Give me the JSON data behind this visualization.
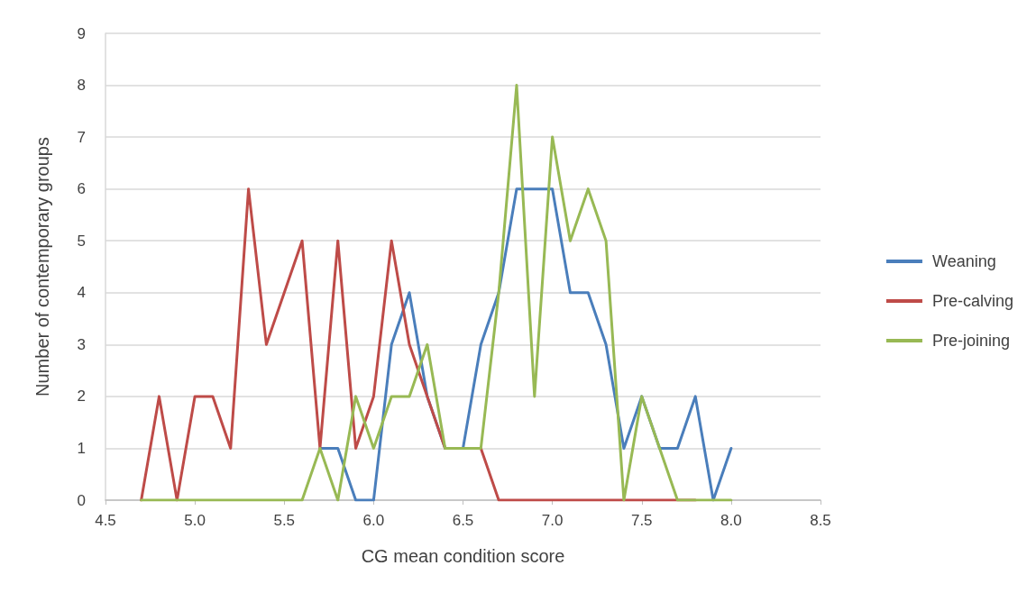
{
  "chart_data": {
    "type": "line",
    "xlabel": "CG mean condition score",
    "ylabel": "Number of contemporary groups",
    "x": [
      4.7,
      4.8,
      4.9,
      5.0,
      5.1,
      5.2,
      5.3,
      5.4,
      5.5,
      5.6,
      5.7,
      5.8,
      5.9,
      6.0,
      6.1,
      6.2,
      6.3,
      6.4,
      6.5,
      6.6,
      6.7,
      6.8,
      6.9,
      7.0,
      7.1,
      7.2,
      7.3,
      7.4,
      7.5,
      7.6,
      7.7,
      7.8,
      7.9,
      8.0
    ],
    "series": [
      {
        "name": "Weaning",
        "color": "#4a7ebb",
        "values": [
          null,
          null,
          null,
          null,
          null,
          null,
          null,
          null,
          null,
          null,
          1,
          1,
          0,
          0,
          3,
          4,
          2,
          1,
          1,
          3,
          4,
          6,
          6,
          6,
          4,
          4,
          3,
          1,
          2,
          1,
          1,
          2,
          0,
          1
        ]
      },
      {
        "name": "Pre-calving",
        "color": "#be4b48",
        "values": [
          0,
          2,
          0,
          2,
          2,
          1,
          6,
          3,
          4,
          5,
          1,
          5,
          1,
          2,
          5,
          3,
          2,
          1,
          1,
          1,
          0,
          0,
          0,
          0,
          0,
          0,
          0,
          0,
          0,
          0,
          0,
          0,
          null,
          null
        ]
      },
      {
        "name": "Pre-joining",
        "color": "#98b954",
        "values": [
          0,
          0,
          0,
          0,
          0,
          0,
          0,
          0,
          0,
          0,
          1,
          0,
          2,
          1,
          2,
          2,
          3,
          1,
          1,
          1,
          4,
          8,
          2,
          7,
          5,
          6,
          5,
          0,
          2,
          1,
          0,
          0,
          0,
          0
        ]
      }
    ],
    "xlim": [
      4.5,
      8.5
    ],
    "xticks": [
      4.5,
      {
        "value": 5,
        "label": "5.0"
      },
      5.5,
      {
        "value": 6,
        "label": "6.0"
      },
      6.5,
      {
        "value": 7,
        "label": "7.0"
      },
      7.5,
      {
        "value": 8,
        "label": "8.0"
      },
      8.5
    ],
    "ylim": [
      0,
      9
    ],
    "yticks": [
      0,
      1,
      2,
      3,
      4,
      5,
      6,
      7,
      8,
      9
    ],
    "grid": "y",
    "legend": "right",
    "marker": "none",
    "line_style": "solid"
  }
}
